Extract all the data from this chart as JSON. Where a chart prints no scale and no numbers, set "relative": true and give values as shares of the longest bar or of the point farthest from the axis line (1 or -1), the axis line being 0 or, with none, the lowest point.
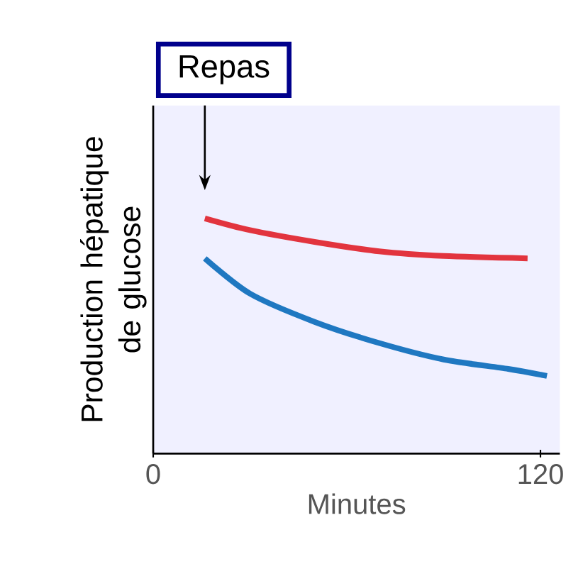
{
  "chart_data": {
    "type": "line",
    "relative": true,
    "xlabel": "Minutes",
    "ylabel": "Production hépatique de glucose",
    "xlim": [
      0,
      126
    ],
    "xticks": [
      0,
      120
    ],
    "annotations": [
      "Repas"
    ],
    "series": [
      {
        "color": "#e2343e",
        "x": [
          16,
          30,
          50,
          70,
          90,
          116
        ],
        "values": [
          1.0,
          0.95,
          0.9,
          0.86,
          0.84,
          0.83
        ]
      },
      {
        "color": "#1f78c1",
        "x": [
          16,
          30,
          50,
          70,
          90,
          110,
          122
        ],
        "values": [
          0.83,
          0.68,
          0.56,
          0.47,
          0.4,
          0.36,
          0.33
        ]
      }
    ]
  }
}
